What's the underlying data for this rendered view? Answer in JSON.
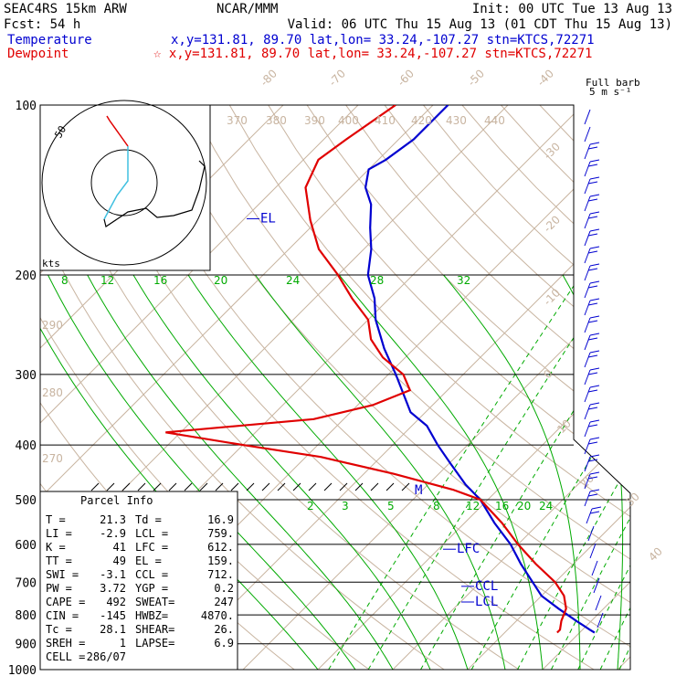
{
  "header": {
    "line1_left": "SEAC4RS 15km ARW",
    "line1_center": "NCAR/MMM",
    "line1_right": "Init: 00 UTC Tue 13 Aug 13",
    "line2_left": "Fcst:   54 h",
    "line2_right": "Valid: 06 UTC Thu 15 Aug 13 (01 CDT Thu 15 Aug 13)",
    "temp_label": "Temperature",
    "temp_info": "x,y=131.81, 89.70   lat,lon= 33.24,-107.27   stn=KTCS,72271",
    "dew_label": "Dewpoint",
    "dew_info": "☆ x,y=131.81, 89.70   lat,lon= 33.24,-107.27   stn=KTCS,72271"
  },
  "barb_header": {
    "line1": "Full barb",
    "line2": "5 m s⁻¹"
  },
  "hodograph": {
    "units": "kts",
    "ring_label": "50"
  },
  "colors": {
    "temperature": "#0000d0",
    "dewpoint": "#e00000",
    "isotherm": "#c8b4a0",
    "mixing_ratio": "#00aa00",
    "grid": "#000000",
    "hodo_low": "#40c0e0"
  },
  "parcel_info": {
    "title": "Parcel Info",
    "rows": [
      [
        "T  =",
        "21.3",
        "Td =",
        "16.9"
      ],
      [
        "LI =",
        "-2.9",
        "LCL =",
        "759."
      ],
      [
        "K  =",
        "41",
        "LFC =",
        "612."
      ],
      [
        "TT =",
        "49",
        "EL  =",
        "159."
      ],
      [
        "SWI =",
        "-3.1",
        "CCL =",
        "712."
      ],
      [
        "PW =",
        "3.72",
        "YGP =",
        "0.2"
      ],
      [
        "CAPE =",
        "492",
        "SWEAT=",
        "247"
      ],
      [
        "CIN =",
        "-145",
        "HWBZ=",
        "4870."
      ],
      [
        "Tc =",
        "28.1",
        "SHEAR=",
        "26."
      ],
      [
        "SREH =",
        "1",
        "LAPSE=",
        "6.9"
      ],
      [
        "CELL =",
        "286/07",
        "",
        ""
      ]
    ]
  },
  "level_labels": {
    "el": "EL",
    "lfc": "LFC",
    "ccl": "CCL",
    "lcl": "LCL",
    "m": "M"
  },
  "chart_data": {
    "type": "line",
    "title": "",
    "xlabel": "",
    "ylabel": "",
    "y_axis": "pressure (hPa), log scale",
    "ylim": [
      1000,
      100
    ],
    "pressure_ticks": [
      100,
      200,
      300,
      400,
      500,
      600,
      700,
      800,
      900,
      1000
    ],
    "isotherm_labels": [
      -80,
      -70,
      -60,
      -50,
      -40,
      -30,
      -20,
      -10,
      0,
      10,
      20,
      30,
      40
    ],
    "theta_labels": [
      370,
      380,
      390,
      400,
      410,
      420,
      430,
      440,
      290,
      280,
      270
    ],
    "mixing_ratio_labels_upper": [
      8,
      12,
      16,
      20,
      24,
      28,
      32
    ],
    "mixing_ratio_labels_lower": [
      2,
      3,
      5,
      8,
      12,
      16,
      20,
      24
    ],
    "series": [
      {
        "name": "Temperature",
        "pressure": [
          860,
          850,
          820,
          780,
          740,
          700,
          650,
          600,
          550,
          500,
          470,
          430,
          400,
          370,
          350,
          300,
          270,
          240,
          220,
          200,
          180,
          165,
          150,
          140,
          130,
          125,
          115,
          100
        ],
        "screen_x_hint": [],
        "values": [
          22,
          21,
          18,
          14,
          10,
          7,
          3,
          -1,
          -6,
          -11,
          -15,
          -20,
          -24,
          -28,
          -32,
          -39,
          -44,
          -49,
          -52,
          -56,
          -59,
          -62,
          -65,
          -68,
          -70,
          -69,
          -68,
          -68
        ]
      },
      {
        "name": "Dewpoint",
        "pressure": [
          860,
          850,
          820,
          780,
          740,
          700,
          650,
          600,
          550,
          500,
          480,
          450,
          420,
          400,
          380,
          360,
          340,
          320,
          300,
          280,
          260,
          240,
          220,
          200,
          180,
          160,
          140,
          125,
          115,
          100
        ],
        "values": [
          17,
          17,
          16,
          15,
          13,
          10,
          5,
          0,
          -5,
          -11,
          -16,
          -26,
          -38,
          -50,
          -62,
          -44,
          -38,
          -35,
          -38,
          -43,
          -47,
          -50,
          -55,
          -60,
          -66,
          -71,
          -76,
          -78,
          -77,
          -75
        ]
      }
    ],
    "levels_hpa": {
      "EL": 159,
      "LFC": 612,
      "CCL": 712,
      "LCL": 759
    }
  }
}
